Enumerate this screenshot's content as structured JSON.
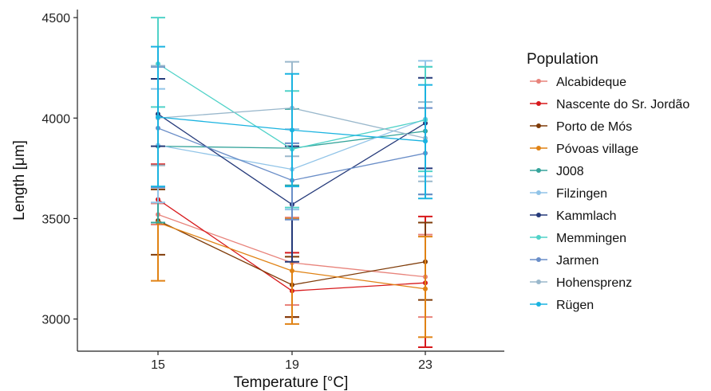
{
  "chart_data": {
    "type": "line",
    "xlabel": "Temperature [°C]",
    "ylabel": "Length [μm]",
    "x": [
      15,
      19,
      23
    ],
    "ylim": [
      2840,
      4540
    ],
    "yticks": [
      3000,
      3500,
      4000,
      4500
    ],
    "grid": false,
    "legend": {
      "title": "Population",
      "placement": "right"
    },
    "series": [
      {
        "name": "Alcabideque",
        "color": "#e8837b",
        "values": [
          3520,
          3280,
          3210
        ],
        "lower": [
          3470,
          3070,
          3010
        ],
        "upper": [
          3575,
          3505,
          3420
        ]
      },
      {
        "name": "Nascente do Sr. Jordão",
        "color": "#d7191c",
        "values": [
          3595,
          3140,
          3180
        ],
        "lower": [
          3480,
          3010,
          2860
        ],
        "upper": [
          3770,
          3330,
          3510
        ]
      },
      {
        "name": "Porto de Mós",
        "color": "#7f3b08",
        "values": [
          3490,
          3170,
          3285
        ],
        "lower": [
          3320,
          3010,
          3095
        ],
        "upper": [
          3645,
          3310,
          3480
        ]
      },
      {
        "name": "Póvoas village",
        "color": "#e08214",
        "values": [
          3480,
          3240,
          3150
        ],
        "lower": [
          3190,
          2975,
          2910
        ],
        "upper": [
          3765,
          3500,
          3410
        ]
      },
      {
        "name": "J008",
        "color": "#35a49b",
        "values": [
          3860,
          3850,
          3935
        ],
        "lower": [
          3480,
          3665,
          3620
        ],
        "upper": [
          4255,
          4045,
          4255
        ]
      },
      {
        "name": "Filzingen",
        "color": "#91c4e8",
        "values": [
          3865,
          3745,
          3995
        ],
        "lower": [
          3580,
          3545,
          3710
        ],
        "upper": [
          4145,
          3945,
          4285
        ]
      },
      {
        "name": "Kammlach",
        "color": "#253a7a",
        "values": [
          4020,
          3570,
          3975
        ],
        "lower": [
          3860,
          3285,
          3750
        ],
        "upper": [
          4195,
          3860,
          4200
        ]
      },
      {
        "name": "Memmingen",
        "color": "#50d2c8",
        "values": [
          4270,
          3845,
          3990
        ],
        "lower": [
          4055,
          3555,
          3735
        ],
        "upper": [
          4500,
          4135,
          4255
        ]
      },
      {
        "name": "Jarmen",
        "color": "#6a8ec8",
        "values": [
          3950,
          3690,
          3825
        ],
        "lower": [
          3655,
          3495,
          3620
        ],
        "upper": [
          4255,
          3875,
          4050
        ]
      },
      {
        "name": "Hohensprenz",
        "color": "#9ab8cc",
        "values": [
          4000,
          4050,
          3900
        ],
        "lower": [
          3765,
          3810,
          3685
        ],
        "upper": [
          4260,
          4280,
          4080
        ]
      },
      {
        "name": "Rügen",
        "color": "#1ab3e0",
        "values": [
          4005,
          3940,
          3885
        ],
        "lower": [
          3660,
          3660,
          3600
        ],
        "upper": [
          4355,
          4220,
          4165
        ]
      }
    ]
  }
}
